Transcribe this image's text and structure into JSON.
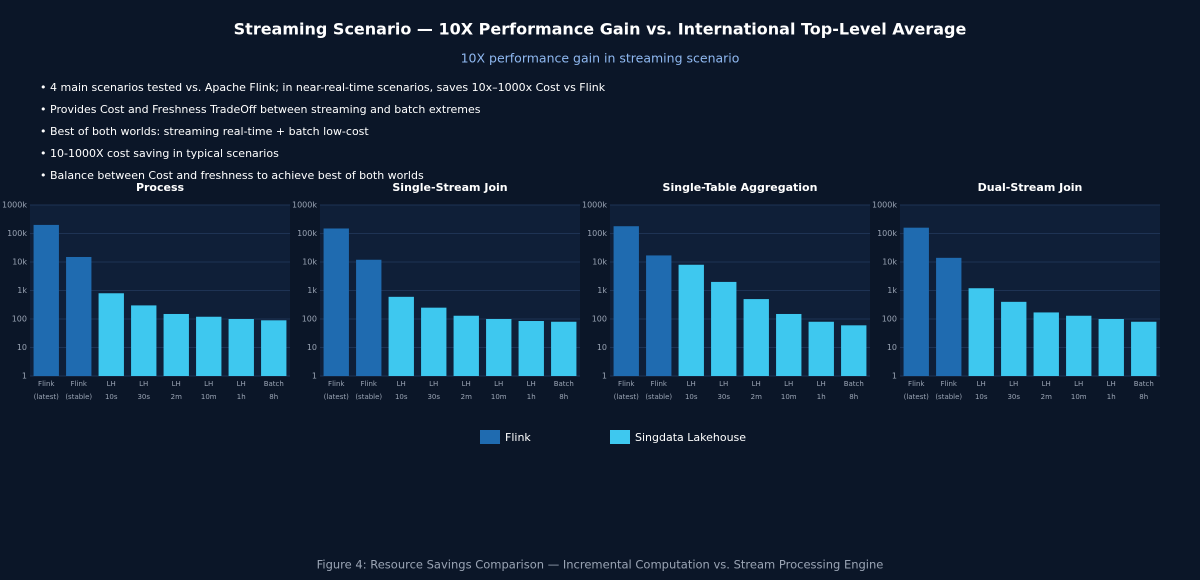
{
  "header": {
    "title": "Streaming Scenario — 10X Performance Gain vs. International Top-Level Average",
    "subtitle": "10X performance gain in streaming scenario"
  },
  "bullets": [
    "4 main scenarios tested vs. Apache Flink; in near-real-time scenarios, saves 10x–1000x Cost vs Flink",
    "Provides Cost and Freshness TradeOff between streaming and batch extremes",
    "Best of both worlds: streaming real-time + batch low-cost",
    "10-1000X cost saving in typical scenarios",
    "Balance between Cost and freshness to achieve best of both worlds"
  ],
  "chart_data": [
    {
      "type": "bar",
      "title": "Process",
      "categories": [
        "Flink (latest)",
        "Flink (stable)",
        "LH 10s",
        "LH 30s",
        "LH 2m",
        "LH 10m",
        "LH 1h",
        "Batch 8h"
      ],
      "series": [
        {
          "name": "Flink",
          "color": "#1f6bb0",
          "values": [
            200000,
            15000,
            null,
            null,
            null,
            null,
            null,
            null
          ]
        },
        {
          "name": "Singdata Lakehouse",
          "color": "#3ec8ef",
          "values": [
            null,
            null,
            800,
            300,
            150,
            120,
            100,
            90
          ]
        }
      ],
      "ylim": [
        1,
        1000000
      ],
      "yticks": [
        1,
        10,
        100,
        {
          "value": 1000,
          "label": "1k"
        },
        {
          "value": 10000,
          "label": "10k"
        },
        {
          "value": 100000,
          "label": "100k"
        },
        {
          "value": 1000000,
          "label": "1000k"
        }
      ],
      "log_scale": true,
      "grid": true
    },
    {
      "type": "bar",
      "title": "Single-Stream Join",
      "categories": [
        "Flink (latest)",
        "Flink (stable)",
        "LH 10s",
        "LH 30s",
        "LH 2m",
        "LH 10m",
        "LH 1h",
        "Batch 8h"
      ],
      "series": [
        {
          "name": "Flink",
          "color": "#1f6bb0",
          "values": [
            150000,
            12000,
            null,
            null,
            null,
            null,
            null,
            null
          ]
        },
        {
          "name": "Singdata Lakehouse",
          "color": "#3ec8ef",
          "values": [
            null,
            null,
            600,
            250,
            130,
            100,
            85,
            80
          ]
        }
      ],
      "ylim": [
        1,
        1000000
      ],
      "yticks": [
        1,
        10,
        100,
        {
          "value": 1000,
          "label": "1k"
        },
        {
          "value": 10000,
          "label": "10k"
        },
        {
          "value": 100000,
          "label": "100k"
        },
        {
          "value": 1000000,
          "label": "1000k"
        }
      ],
      "log_scale": true,
      "grid": true
    },
    {
      "type": "bar",
      "title": "Single-Table Aggregation",
      "categories": [
        "Flink (latest)",
        "Flink (stable)",
        "LH 10s",
        "LH 30s",
        "LH 2m",
        "LH 10m",
        "LH 1h",
        "Batch 8h"
      ],
      "series": [
        {
          "name": "Flink",
          "color": "#1f6bb0",
          "values": [
            180000,
            17000,
            null,
            null,
            null,
            null,
            null,
            null
          ]
        },
        {
          "name": "Singdata Lakehouse",
          "color": "#3ec8ef",
          "values": [
            null,
            null,
            8000,
            2000,
            500,
            150,
            80,
            60
          ]
        }
      ],
      "ylim": [
        1,
        1000000
      ],
      "yticks": [
        1,
        10,
        100,
        {
          "value": 1000,
          "label": "1k"
        },
        {
          "value": 10000,
          "label": "10k"
        },
        {
          "value": 100000,
          "label": "100k"
        },
        {
          "value": 1000000,
          "label": "1000k"
        }
      ],
      "log_scale": true,
      "grid": true
    },
    {
      "type": "bar",
      "title": "Dual-Stream Join",
      "categories": [
        "Flink (latest)",
        "Flink (stable)",
        "LH 10s",
        "LH 30s",
        "LH 2m",
        "LH 10m",
        "LH 1h",
        "Batch 8h"
      ],
      "series": [
        {
          "name": "Flink",
          "color": "#1f6bb0",
          "values": [
            160000,
            14000,
            null,
            null,
            null,
            null,
            null,
            null
          ]
        },
        {
          "name": "Singdata Lakehouse",
          "color": "#3ec8ef",
          "values": [
            null,
            null,
            1200,
            400,
            170,
            130,
            100,
            80
          ]
        }
      ],
      "ylim": [
        1,
        1000000
      ],
      "yticks": [
        1,
        10,
        100,
        {
          "value": 1000,
          "label": "1k"
        },
        {
          "value": 10000,
          "label": "10k"
        },
        {
          "value": 100000,
          "label": "100k"
        },
        {
          "value": 1000000,
          "label": "1000k"
        }
      ],
      "log_scale": true,
      "grid": true
    }
  ],
  "caption": "Figure 4: Resource Savings Comparison — Incremental Computation vs. Stream Processing Engine"
}
